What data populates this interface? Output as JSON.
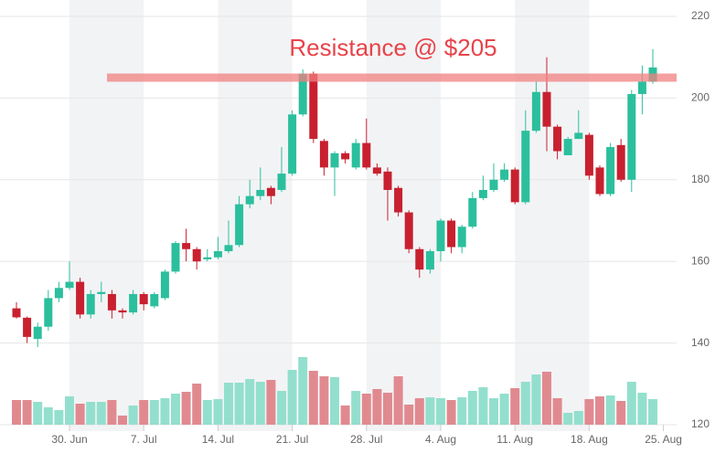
{
  "chart_data": {
    "type": "candlestick",
    "categories": [
      null,
      null,
      null,
      null,
      null,
      "30. Jun",
      null,
      null,
      null,
      null,
      null,
      null,
      "7. Jul",
      null,
      null,
      null,
      null,
      null,
      null,
      "14. Jul",
      null,
      null,
      null,
      null,
      null,
      null,
      "21. Jul",
      null,
      null,
      null,
      null,
      null,
      null,
      "28. Jul",
      null,
      null,
      null,
      null,
      null,
      null,
      "4. Aug",
      null,
      null,
      null,
      null,
      null,
      null,
      "11. Aug",
      null,
      null,
      null,
      null,
      null,
      null,
      "18. Aug",
      null,
      null,
      null,
      null,
      null,
      null,
      "25. Aug"
    ],
    "open": [
      148.5,
      146.2,
      141,
      144,
      151,
      153.5,
      155,
      147,
      152,
      152,
      148,
      147.5,
      152,
      149,
      151,
      157.5,
      164.5,
      163,
      160.5,
      161,
      162.5,
      164,
      174,
      176,
      178,
      177.5,
      181.5,
      196,
      206,
      189.5,
      183,
      186.5,
      183,
      189,
      183,
      182,
      178,
      172,
      163,
      158,
      162.5,
      170,
      163.5,
      168.5,
      175.5,
      177.5,
      180,
      182.5,
      174.5,
      192,
      201.5,
      193,
      186,
      190,
      191,
      183,
      176.5,
      188.5,
      180,
      201,
      204,
      null
    ],
    "high": [
      150,
      146.5,
      145,
      153,
      155,
      160,
      156,
      153,
      155,
      153,
      148.5,
      153,
      152.5,
      152.5,
      158,
      165,
      168,
      163.5,
      163,
      166,
      170,
      176,
      180,
      183,
      178.5,
      188,
      197,
      207,
      206.5,
      190,
      187,
      187,
      190,
      195,
      184,
      183,
      178.5,
      172.5,
      163.5,
      163,
      170.5,
      170.5,
      169,
      177,
      181,
      184,
      184,
      183,
      197,
      204,
      210,
      193.5,
      190.5,
      197,
      191.5,
      183.5,
      189,
      190,
      202,
      208,
      212,
      null
    ],
    "low": [
      146,
      140,
      139,
      143,
      150,
      153,
      146,
      146,
      150,
      146,
      146,
      147,
      148,
      148.5,
      150.5,
      157,
      160,
      158,
      160,
      160.5,
      162,
      163.5,
      173,
      175,
      174,
      177,
      181,
      195.5,
      189,
      181,
      176,
      184,
      182.5,
      182.5,
      181,
      170,
      171,
      162,
      156,
      157,
      160,
      162,
      162,
      168,
      175,
      177,
      179.5,
      174,
      174,
      191.5,
      187,
      185,
      186,
      190,
      180,
      176,
      176,
      179.5,
      177,
      196,
      203.5,
      null
    ],
    "close": [
      146.3,
      141.5,
      144,
      151,
      153.5,
      155,
      147,
      152,
      152.5,
      148,
      147.5,
      152,
      149.5,
      152,
      157.5,
      164.5,
      163,
      160,
      161,
      162.5,
      164,
      174,
      176,
      177.5,
      176,
      181.5,
      196,
      206,
      190,
      183,
      186.5,
      185,
      189,
      183,
      181.5,
      177.5,
      172,
      163,
      158,
      162.5,
      170,
      163.5,
      168.5,
      175.5,
      177.5,
      180,
      182.5,
      174.5,
      192,
      201.5,
      193,
      187,
      190,
      191.5,
      181,
      176.5,
      188,
      180,
      201,
      204,
      207.5,
      null
    ],
    "volume": [
      27,
      27,
      25,
      19,
      16,
      31,
      23,
      25,
      25,
      27,
      10,
      21,
      27,
      27,
      29,
      34,
      36,
      45,
      27,
      28,
      46,
      46,
      50,
      47,
      49,
      37,
      60,
      74,
      59,
      53,
      52,
      21,
      37,
      34,
      39,
      35,
      53,
      22,
      29,
      30,
      29,
      27,
      30,
      37,
      41,
      29,
      34,
      40,
      47,
      55,
      58,
      29,
      13,
      15,
      28,
      31,
      32,
      26,
      47,
      35,
      28,
      null
    ],
    "volume_lim": [
      0,
      100
    ],
    "ylim": [
      120,
      220
    ],
    "yticks": [
      120,
      140,
      160,
      180,
      200,
      220
    ],
    "grid": true,
    "up_color": "#2bbf9d",
    "down_color": "#c8202f",
    "up_volume_color": "#93dfcd",
    "down_volume_color": "#e08a90",
    "annotation": {
      "text": "Resistance @ $205",
      "value": 205,
      "color": "#f08080"
    }
  }
}
